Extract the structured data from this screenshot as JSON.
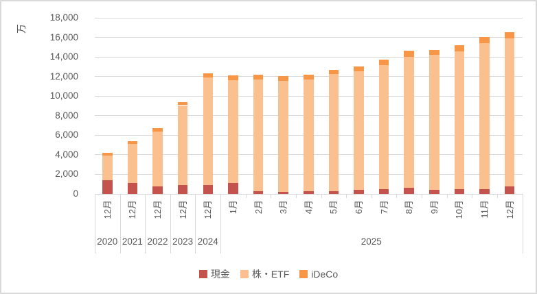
{
  "chart_data": {
    "type": "bar",
    "stacked": true,
    "title": "",
    "y_axis_title": "万",
    "unit": "万",
    "grid": true,
    "legend_position": "bottom",
    "ylim": [
      0,
      18000
    ],
    "ytick_step": 2000,
    "ytick_labels_top_to_bottom": [
      "18,000",
      "16,000",
      "14,000",
      "12,000",
      "10,000",
      "8,000",
      "6,000",
      "4,000",
      "2,000",
      "0"
    ],
    "categories": [
      "12月",
      "12月",
      "12月",
      "12月",
      "12月",
      "1月",
      "2月",
      "3月",
      "4月",
      "5月",
      "6月",
      "7月",
      "8月",
      "9月",
      "10月",
      "11月",
      "12月"
    ],
    "year_groups": [
      {
        "label": "2020",
        "span": 1
      },
      {
        "label": "2021",
        "span": 1
      },
      {
        "label": "2022",
        "span": 1
      },
      {
        "label": "2023",
        "span": 1
      },
      {
        "label": "2024",
        "span": 1
      },
      {
        "label": "2025",
        "span": 12
      }
    ],
    "series": [
      {
        "name": "現金",
        "color": "#c4534e",
        "values": [
          1400,
          1150,
          800,
          900,
          900,
          1150,
          260,
          220,
          300,
          260,
          450,
          500,
          610,
          450,
          500,
          500,
          750
        ]
      },
      {
        "name": "株・ETF",
        "color": "#fac090",
        "values": [
          2550,
          3970,
          5600,
          8170,
          11010,
          10460,
          11430,
          11340,
          11390,
          11980,
          12100,
          12700,
          13380,
          13760,
          14060,
          14920,
          15150
        ]
      },
      {
        "name": "iDeCo",
        "color": "#f79646",
        "values": [
          270,
          280,
          300,
          330,
          440,
          490,
          510,
          490,
          510,
          460,
          490,
          540,
          630,
          530,
          670,
          640,
          650
        ]
      }
    ],
    "totals": [
      4220,
      5400,
      6700,
      9400,
      12350,
      12100,
      12200,
      12050,
      12200,
      12700,
      13040,
      13740,
      14620,
      14740,
      15230,
      16060,
      16550
    ]
  },
  "colors": {
    "grid": "#d9d9d9",
    "axis_text": "#595959",
    "chart_border": "#d9d9d9",
    "background": "#ffffff"
  }
}
